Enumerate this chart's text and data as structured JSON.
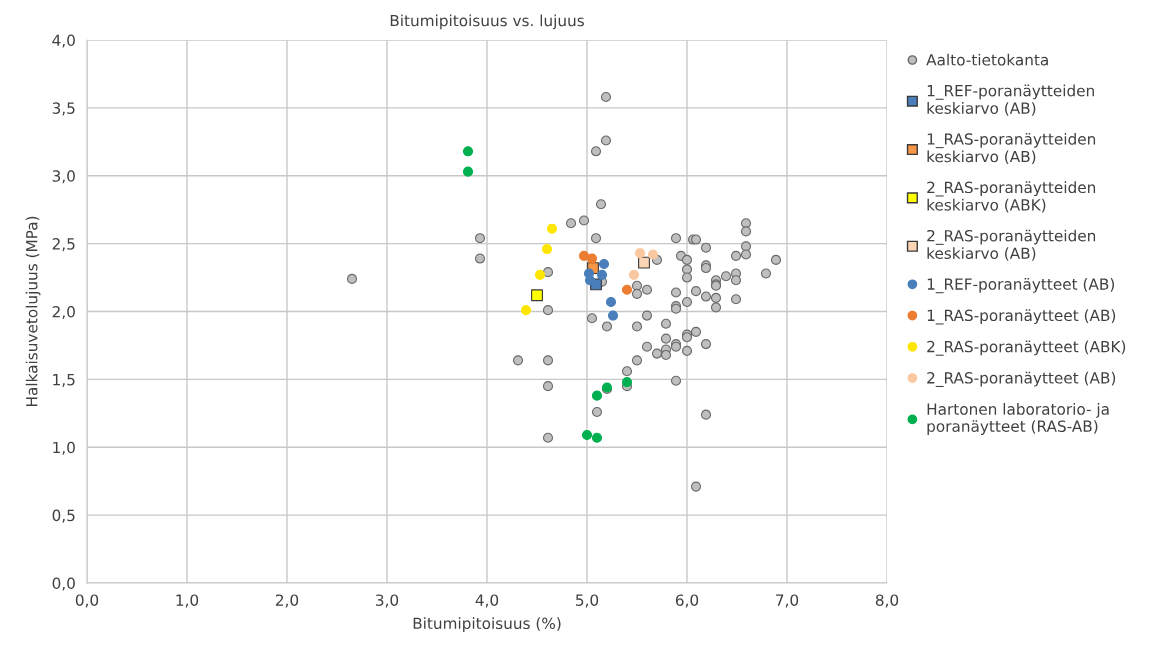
{
  "chart_data": {
    "type": "scatter",
    "title": "Bitumipitoisuus vs. lujuus",
    "xlabel": "Bitumipitoisuus (%)",
    "ylabel": "Halkaisuvetolujuus (MPa)",
    "xlim": [
      0,
      8
    ],
    "ylim": [
      0,
      4
    ],
    "xticks": [
      {
        "value": 0,
        "label": "0,0"
      },
      {
        "value": 1,
        "label": "1,0"
      },
      {
        "value": 2,
        "label": "2,0"
      },
      {
        "value": 3,
        "label": "3,0"
      },
      {
        "value": 4,
        "label": "4,0"
      },
      {
        "value": 5,
        "label": "5,0"
      },
      {
        "value": 6,
        "label": "6,0"
      },
      {
        "value": 7,
        "label": "7,0"
      },
      {
        "value": 8,
        "label": "8,0"
      }
    ],
    "yticks": [
      {
        "value": 0,
        "label": "0,0"
      },
      {
        "value": 0.5,
        "label": "0,5"
      },
      {
        "value": 1,
        "label": "1,0"
      },
      {
        "value": 1.5,
        "label": "1,5"
      },
      {
        "value": 2,
        "label": "2,0"
      },
      {
        "value": 2.5,
        "label": "2,5"
      },
      {
        "value": 3,
        "label": "3,0"
      },
      {
        "value": 3.5,
        "label": "3,5"
      },
      {
        "value": 4,
        "label": "4,0"
      }
    ],
    "grid": true,
    "legend": "right",
    "series": [
      {
        "name": "Aalto-tietokanta",
        "color": "#bfbfbf",
        "marker": "circle",
        "x": [
          2.65,
          3.93,
          3.93,
          4.31,
          4.61,
          4.61,
          4.61,
          4.61,
          4.61,
          4.84,
          4.97,
          5.05,
          5.09,
          5.09,
          5.15,
          5.1,
          5.14,
          5.19,
          5.19,
          5.2,
          5.2,
          5.4,
          5.4,
          5.5,
          5.5,
          5.5,
          5.5,
          5.6,
          5.6,
          5.6,
          5.7,
          5.7,
          5.79,
          5.79,
          5.79,
          5.79,
          5.89,
          5.89,
          5.89,
          5.89,
          5.89,
          5.89,
          5.89,
          5.94,
          6.0,
          6.0,
          6.0,
          6.0,
          6.0,
          6.0,
          6.0,
          6.06,
          6.09,
          6.09,
          6.09,
          6.09,
          6.19,
          6.19,
          6.19,
          6.19,
          6.19,
          6.19,
          6.29,
          6.29,
          6.29,
          6.29,
          6.29,
          6.39,
          6.49,
          6.49,
          6.49,
          6.49,
          6.59,
          6.59,
          6.59,
          6.59,
          6.79,
          6.89
        ],
        "values": [
          2.24,
          2.54,
          2.39,
          1.64,
          2.29,
          2.01,
          1.64,
          1.45,
          1.07,
          2.65,
          2.67,
          1.95,
          3.18,
          2.54,
          2.22,
          1.26,
          2.79,
          3.58,
          3.26,
          1.89,
          1.43,
          1.56,
          1.45,
          2.19,
          2.13,
          1.89,
          1.64,
          2.16,
          1.97,
          1.74,
          2.38,
          1.69,
          1.91,
          1.8,
          1.72,
          1.68,
          2.54,
          2.14,
          2.04,
          2.02,
          1.76,
          1.74,
          1.49,
          2.41,
          2.38,
          2.31,
          2.25,
          2.07,
          1.83,
          1.81,
          1.71,
          2.53,
          2.53,
          2.15,
          1.85,
          0.71,
          2.47,
          2.34,
          2.32,
          2.11,
          1.76,
          1.24,
          2.23,
          2.2,
          2.19,
          2.1,
          2.03,
          2.26,
          2.41,
          2.28,
          2.23,
          2.09,
          2.65,
          2.59,
          2.48,
          2.42,
          2.28,
          2.38
        ]
      },
      {
        "name": "1_REF-poranäytteiden keskiarvo (AB)",
        "color": "#4a7ebb",
        "marker": "square",
        "x": [
          5.09
        ],
        "values": [
          2.2
        ]
      },
      {
        "name": "1_RAS-poranäytteiden keskiarvo (AB)",
        "color": "#f79646",
        "marker": "square",
        "x": [
          5.06
        ],
        "values": [
          2.32
        ]
      },
      {
        "name": "2_RAS-poranäytteiden keskiarvo (ABK)",
        "color": "#ffff00",
        "marker": "square",
        "x": [
          4.5
        ],
        "values": [
          2.12
        ]
      },
      {
        "name": "2_RAS-poranäytteiden keskiarvo (AB)",
        "color": "#fcd5b5",
        "marker": "square",
        "x": [
          5.57
        ],
        "values": [
          2.36
        ]
      },
      {
        "name": "1_REF-poranäytteet (AB)",
        "color": "#4a7ebb",
        "marker": "circle",
        "x": [
          5.17,
          5.02,
          5.15,
          5.03,
          5.24,
          5.26
        ],
        "values": [
          2.35,
          2.28,
          2.27,
          2.23,
          2.07,
          1.97
        ]
      },
      {
        "name": "1_RAS-poranäytteet (AB)",
        "color": "#ed7d31",
        "marker": "circle",
        "x": [
          4.97,
          5.05,
          5.4
        ],
        "values": [
          2.41,
          2.39,
          2.16
        ]
      },
      {
        "name": "2_RAS-poranäytteet (ABK)",
        "color": "#ffe600",
        "marker": "circle",
        "x": [
          4.65,
          4.6,
          4.53,
          4.39
        ],
        "values": [
          2.61,
          2.46,
          2.27,
          2.01
        ]
      },
      {
        "name": "2_RAS-poranäytteet (AB)",
        "color": "#fac8a0",
        "marker": "circle",
        "x": [
          5.53,
          5.66,
          5.47
        ],
        "values": [
          2.43,
          2.42,
          2.27
        ]
      },
      {
        "name": "Hartonen laboratorio- ja poranäytteet (RAS-AB)",
        "color": "#00b050",
        "marker": "circle",
        "x": [
          3.81,
          3.81,
          5.0,
          5.1,
          5.1,
          5.2,
          5.4
        ],
        "values": [
          3.18,
          3.03,
          1.09,
          1.07,
          1.38,
          1.44,
          1.48
        ]
      }
    ]
  }
}
